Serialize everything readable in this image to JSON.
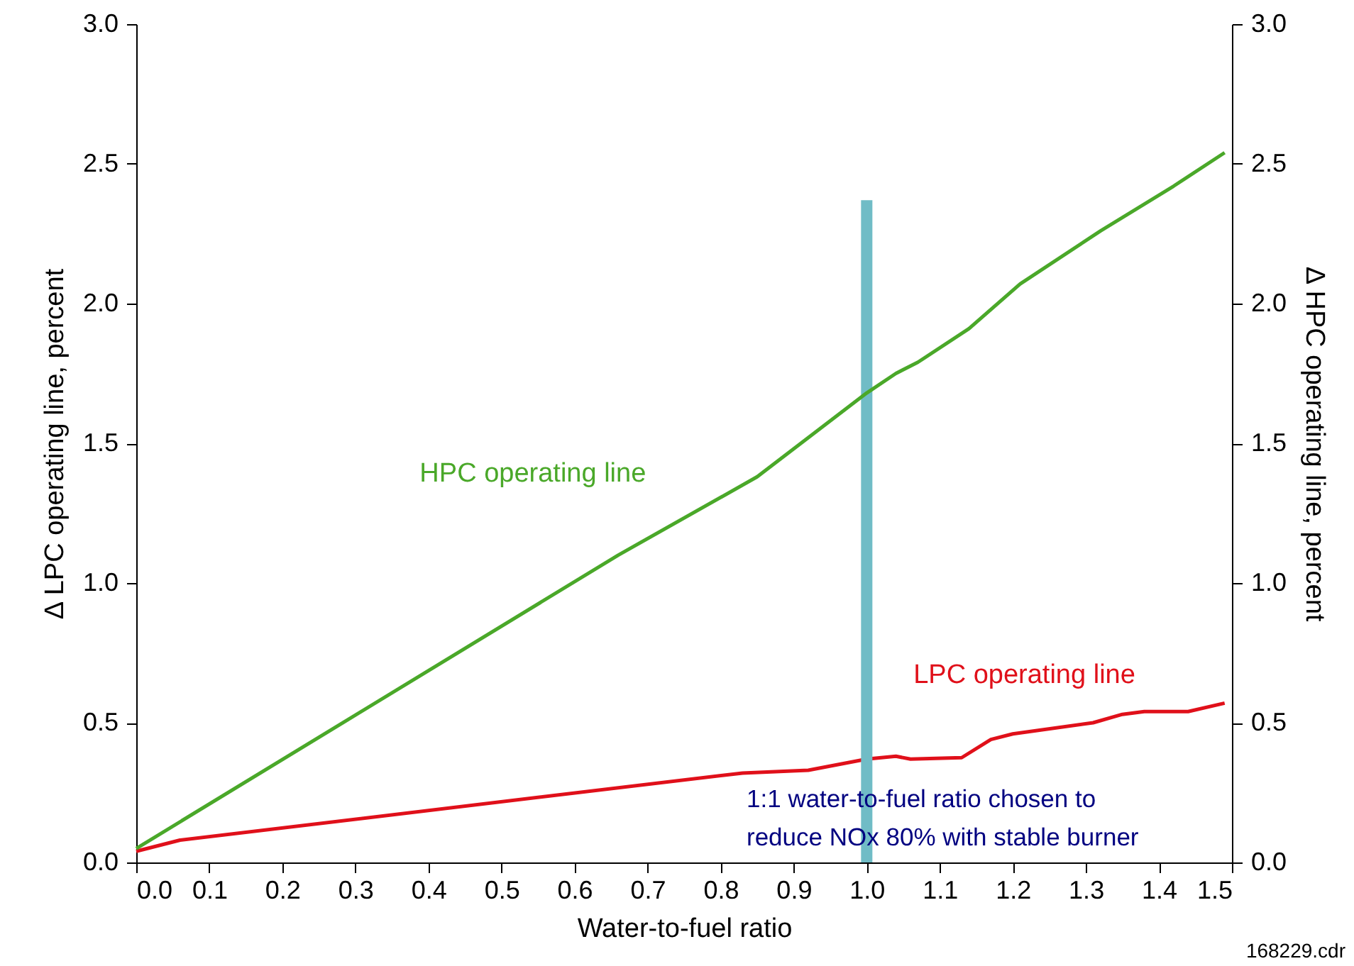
{
  "chart_data": {
    "type": "line",
    "xlabel": "Water-to-fuel ratio",
    "ylabel": "Δ LPC operating line, percent",
    "y2label": "Δ HPC operating line, percent",
    "xlim": [
      0,
      1.5
    ],
    "xticks": [
      {
        "value": 0,
        "label": "0.0"
      },
      0.1,
      0.2,
      0.3,
      0.4,
      0.5,
      0.6,
      0.7,
      0.8,
      0.9,
      {
        "value": 1,
        "label": "1.0"
      },
      1.1,
      1.2,
      1.3,
      1.4,
      1.5
    ],
    "ylim": [
      0,
      3
    ],
    "yticks": [
      {
        "value": 0,
        "label": "0.0"
      },
      0.5,
      {
        "value": 1,
        "label": "1.0"
      },
      1.5,
      {
        "value": 2,
        "label": "2.0"
      },
      2.5,
      {
        "value": 3,
        "label": "3.0"
      }
    ],
    "y2lim": [
      0,
      3
    ],
    "y2ticks": [
      {
        "value": 0,
        "label": "0.0"
      },
      0.5,
      {
        "value": 1,
        "label": "1.0"
      },
      1.5,
      {
        "value": 2,
        "label": "2.0"
      },
      2.5,
      {
        "value": 3,
        "label": "3.0"
      }
    ],
    "grid": false,
    "series": [
      {
        "name": "LPC operating line",
        "color": "#e0101a",
        "x": [
          0,
          0.06,
          0.83,
          0.92,
          1.0,
          1.04,
          1.06,
          1.13,
          1.17,
          1.2,
          1.31,
          1.35,
          1.38,
          1.44,
          1.49
        ],
        "values": [
          0.04,
          0.08,
          0.32,
          0.33,
          0.37,
          0.38,
          0.37,
          0.375,
          0.44,
          0.46,
          0.5,
          0.53,
          0.54,
          0.54,
          0.57
        ]
      },
      {
        "type": "bar",
        "color": "#70bcc6",
        "x": [
          1.0
        ],
        "values": [
          2.37
        ]
      },
      {
        "name": "HPC operating line",
        "axis": "y2",
        "color": "#4aa829",
        "x": [
          0,
          0.66,
          0.85,
          1.0,
          1.04,
          1.07,
          1.14,
          1.21,
          1.32,
          1.42,
          1.49
        ],
        "values": [
          0.05,
          1.1,
          1.38,
          1.68,
          1.75,
          1.79,
          1.91,
          2.07,
          2.26,
          2.42,
          2.54
        ]
      }
    ],
    "annotations": [
      "1:1 water-to-fuel ratio chosen to\nreduce NOx 80% with stable burner",
      "168229.cdr"
    ]
  }
}
